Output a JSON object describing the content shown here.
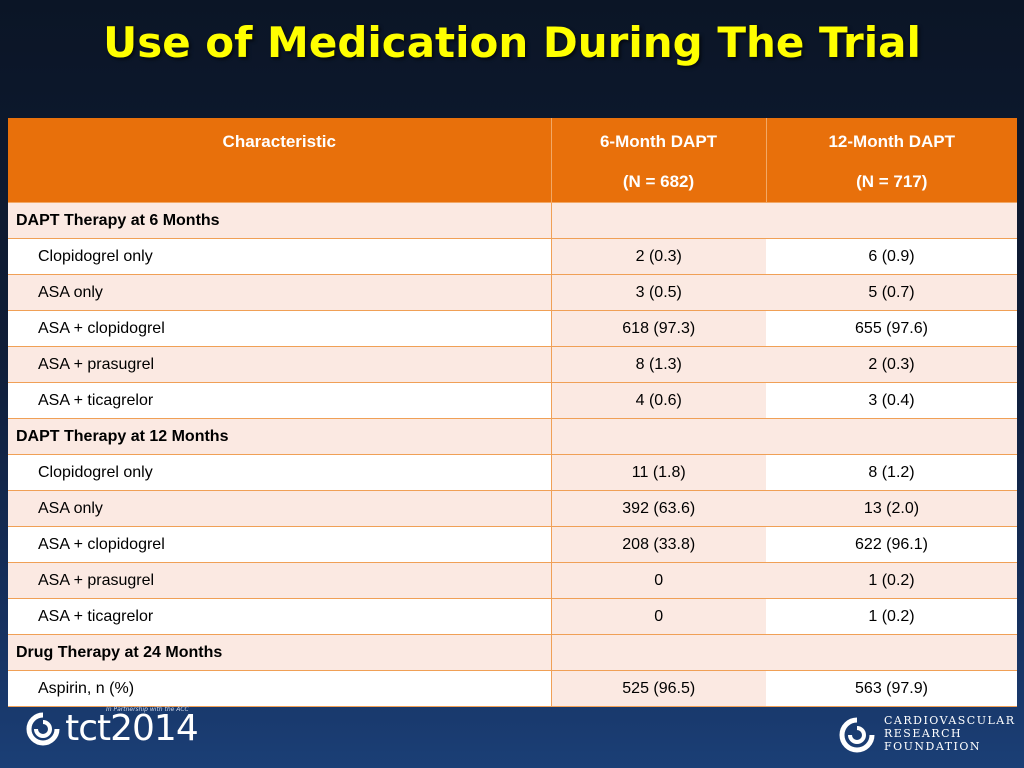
{
  "slide": {
    "title": "Use of Medication During The Trial"
  },
  "table": {
    "headers": {
      "characteristic": "Characteristic",
      "col1_line1": "6-Month DAPT",
      "col1_line2": "(N = 682)",
      "col2_line1": "12-Month DAPT",
      "col2_line2": "(N = 717)"
    },
    "rows": [
      {
        "label": "DAPT Therapy at 6 Months",
        "v1": "",
        "v2": ""
      },
      {
        "label": "Clopidogrel only",
        "v1": "2 (0.3)",
        "v2": "6 (0.9)"
      },
      {
        "label": "ASA only",
        "v1": "3 (0.5)",
        "v2": "5 (0.7)"
      },
      {
        "label": "ASA + clopidogrel",
        "v1": "618 (97.3)",
        "v2": "655 (97.6)"
      },
      {
        "label": "ASA + prasugrel",
        "v1": "8 (1.3)",
        "v2": "2 (0.3)"
      },
      {
        "label": "ASA + ticagrelor",
        "v1": "4 (0.6)",
        "v2": "3 (0.4)"
      },
      {
        "label": "DAPT Therapy at 12 Months",
        "v1": "",
        "v2": ""
      },
      {
        "label": "Clopidogrel only",
        "v1": "11 (1.8)",
        "v2": "8 (1.2)"
      },
      {
        "label": "ASA only",
        "v1": "392 (63.6)",
        "v2": "13 (2.0)"
      },
      {
        "label": "ASA + clopidogrel",
        "v1": "208 (33.8)",
        "v2": "622 (96.1)"
      },
      {
        "label": "ASA + prasugrel",
        "v1": "0",
        "v2": "1 (0.2)"
      },
      {
        "label": "ASA + ticagrelor",
        "v1": "0",
        "v2": "1 (0.2)"
      },
      {
        "label": "Drug Therapy at 24 Months",
        "v1": "",
        "v2": ""
      },
      {
        "label": "Aspirin, n (%)",
        "v1": "525 (96.5)",
        "v2": "563 (97.9)"
      }
    ]
  },
  "footer": {
    "tct_logo_text": "tct2014",
    "tct_tagline": "In Partnership with the ACC",
    "crf_line1": "CARDIOVASCULAR",
    "crf_line2": "RESEARCH",
    "crf_line3": "FOUNDATION"
  },
  "colors": {
    "title": "#ffff00",
    "header_bg": "#e8700b",
    "row_tint": "#fbe9e2",
    "border": "#f0a056"
  },
  "icons": [
    "tct-swirl-logo-icon",
    "crf-logo-icon"
  ]
}
